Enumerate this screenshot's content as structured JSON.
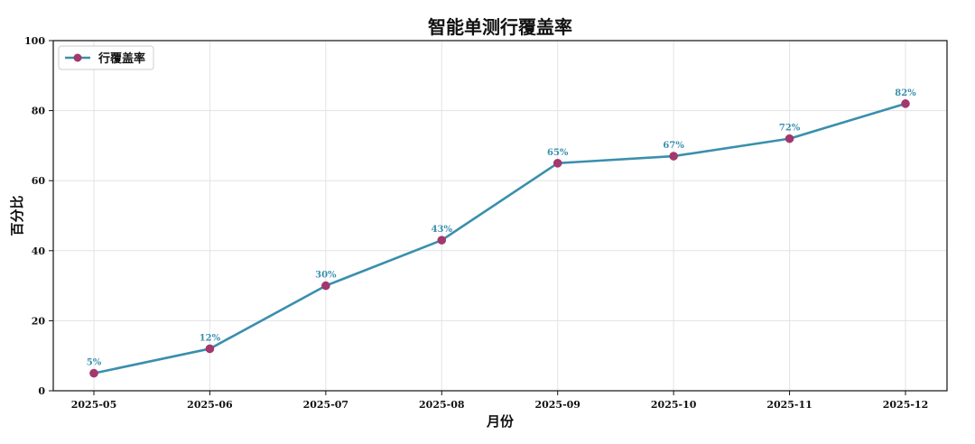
{
  "chart_data": {
    "type": "line",
    "title": "智能单测行覆盖率",
    "xlabel": "月份",
    "ylabel": "百分比",
    "categories": [
      "2025-05",
      "2025-06",
      "2025-07",
      "2025-08",
      "2025-09",
      "2025-10",
      "2025-11",
      "2025-12"
    ],
    "series": [
      {
        "name": "行覆盖率",
        "values": [
          5,
          12,
          30,
          43,
          65,
          67,
          72,
          82
        ],
        "data_labels": [
          "5%",
          "12%",
          "30%",
          "43%",
          "65%",
          "67%",
          "72%",
          "82%"
        ],
        "line_color": "#3a8fad",
        "marker_color": "#a2386e"
      }
    ],
    "ylim": [
      0,
      100
    ],
    "yticks": [
      "0",
      "20",
      "40",
      "60",
      "80",
      "100"
    ],
    "grid": true,
    "legend_position": "top-left"
  }
}
